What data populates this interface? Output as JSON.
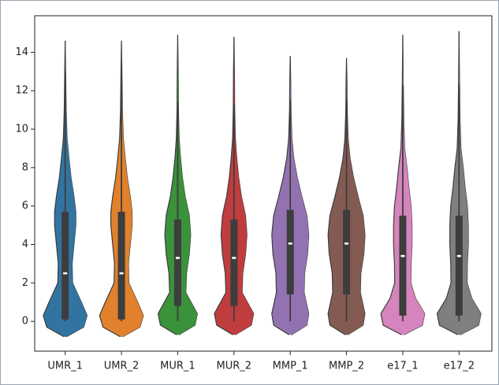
{
  "chart_data": {
    "type": "violin",
    "categories": [
      "UMR_1",
      "UMR_2",
      "MUR_1",
      "MUR_2",
      "MMP_1",
      "MMP_2",
      "e17_1",
      "e17_2"
    ],
    "ylim": [
      -1.55,
      15.9
    ],
    "yticks": [
      0,
      2,
      4,
      6,
      8,
      10,
      12,
      14
    ],
    "series": [
      {
        "name": "UMR_1",
        "color": "#3274a1",
        "median": 2.5,
        "box": [
          0.1,
          5.7
        ],
        "whisker": [
          0,
          13
        ],
        "kde_y": [
          -0.8,
          -0.3,
          0.3,
          1,
          2,
          3,
          4,
          5,
          5.7,
          6.5,
          7.5,
          8.5,
          9.5,
          11,
          13,
          14.6
        ],
        "kde_width": [
          0.05,
          0.8,
          0.95,
          0.7,
          0.32,
          0.3,
          0.38,
          0.46,
          0.46,
          0.38,
          0.25,
          0.16,
          0.08,
          0.04,
          0.02,
          0
        ]
      },
      {
        "name": "UMR_2",
        "color": "#e1812c",
        "median": 2.5,
        "box": [
          0.1,
          5.7
        ],
        "whisker": [
          0,
          13.5
        ],
        "kde_y": [
          -0.8,
          -0.3,
          0.3,
          1,
          2,
          3,
          4,
          5,
          5.7,
          6.5,
          7.5,
          8.5,
          9.5,
          11,
          13,
          14.6
        ],
        "kde_width": [
          0.05,
          0.8,
          0.95,
          0.7,
          0.32,
          0.3,
          0.38,
          0.46,
          0.46,
          0.38,
          0.25,
          0.16,
          0.08,
          0.04,
          0.02,
          0
        ]
      },
      {
        "name": "MUR_1",
        "color": "#3a923a",
        "median": 3.3,
        "box": [
          0.8,
          5.3
        ],
        "whisker": [
          0,
          11.4
        ],
        "kde_y": [
          -0.7,
          -0.2,
          0.4,
          1.5,
          2.5,
          3.5,
          4.5,
          5.5,
          6.5,
          7.5,
          8.5,
          9.5,
          11,
          13,
          14.9
        ],
        "kde_width": [
          0.05,
          0.75,
          0.85,
          0.35,
          0.38,
          0.5,
          0.56,
          0.5,
          0.32,
          0.2,
          0.12,
          0.06,
          0.03,
          0.02,
          0
        ]
      },
      {
        "name": "MUR_2",
        "color": "#c03d3e",
        "median": 3.3,
        "box": [
          0.8,
          5.3
        ],
        "whisker": [
          0,
          11.3
        ],
        "kde_y": [
          -0.7,
          -0.2,
          0.4,
          1.5,
          2.5,
          3.5,
          4.5,
          5.5,
          6.5,
          7.5,
          8.5,
          9.5,
          11,
          13,
          14.8
        ],
        "kde_width": [
          0.05,
          0.75,
          0.85,
          0.35,
          0.38,
          0.5,
          0.56,
          0.5,
          0.32,
          0.2,
          0.12,
          0.06,
          0.03,
          0.02,
          0
        ]
      },
      {
        "name": "MMP_1",
        "color": "#9372b2",
        "median": 4.05,
        "box": [
          1.4,
          5.8
        ],
        "whisker": [
          0,
          11.5
        ],
        "kde_y": [
          -0.7,
          -0.2,
          0.4,
          1.5,
          2.5,
          3.5,
          4.5,
          5.5,
          6.5,
          7.5,
          8.5,
          9.5,
          11,
          12.5,
          13.8
        ],
        "kde_width": [
          0.05,
          0.72,
          0.8,
          0.6,
          0.62,
          0.75,
          0.8,
          0.72,
          0.5,
          0.3,
          0.15,
          0.07,
          0.03,
          0.02,
          0
        ]
      },
      {
        "name": "MMP_2",
        "color": "#845b53",
        "median": 4.05,
        "box": [
          1.4,
          5.8
        ],
        "whisker": [
          0,
          11.5
        ],
        "kde_y": [
          -0.7,
          -0.2,
          0.4,
          1.5,
          2.5,
          3.5,
          4.5,
          5.5,
          6.5,
          7.5,
          8.5,
          9.5,
          11,
          12.5,
          13.7
        ],
        "kde_width": [
          0.05,
          0.72,
          0.8,
          0.6,
          0.62,
          0.75,
          0.8,
          0.72,
          0.5,
          0.3,
          0.15,
          0.07,
          0.03,
          0.02,
          0
        ]
      },
      {
        "name": "e17_1",
        "color": "#d684bd",
        "median": 3.4,
        "box": [
          0.3,
          5.5
        ],
        "whisker": [
          0,
          12.3
        ],
        "kde_y": [
          -0.7,
          -0.2,
          0.4,
          1.2,
          2,
          3,
          4,
          5,
          6,
          7,
          8,
          9,
          10.5,
          12.5,
          14.9
        ],
        "kde_width": [
          0.05,
          0.85,
          0.95,
          0.55,
          0.35,
          0.36,
          0.4,
          0.4,
          0.36,
          0.26,
          0.18,
          0.08,
          0.04,
          0.02,
          0
        ]
      },
      {
        "name": "e17_2",
        "color": "#7f7f7f",
        "median": 3.4,
        "box": [
          0.3,
          5.5
        ],
        "whisker": [
          0,
          12.3
        ],
        "kde_y": [
          -0.7,
          -0.2,
          0.4,
          1.2,
          2,
          3,
          4,
          5,
          6,
          7,
          8,
          9,
          10.5,
          12.5,
          15.1
        ],
        "kde_width": [
          0.05,
          0.85,
          0.95,
          0.55,
          0.35,
          0.36,
          0.4,
          0.4,
          0.36,
          0.26,
          0.18,
          0.08,
          0.04,
          0.02,
          0
        ]
      }
    ]
  }
}
